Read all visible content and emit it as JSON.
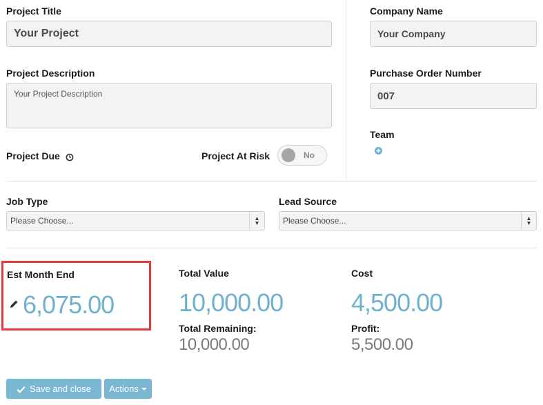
{
  "fields": {
    "project_title_label": "Project Title",
    "project_title_value": "Your Project",
    "company_name_label": "Company Name",
    "company_name_value": "Your Company",
    "project_description_label": "Project Description",
    "project_description_value": "Your Project Description",
    "po_number_label": "Purchase Order Number",
    "po_number_value": "007",
    "project_due_label": "Project Due",
    "project_at_risk_label": "Project At Risk",
    "project_at_risk_toggle": "No",
    "team_label": "Team",
    "job_type_label": "Job Type",
    "job_type_value": "Please Choose...",
    "lead_source_label": "Lead Source",
    "lead_source_value": "Please Choose..."
  },
  "stats": {
    "est_month_end_label": "Est Month End",
    "est_month_end_value": "6,075.00",
    "total_value_label": "Total Value",
    "total_value": "10,000.00",
    "cost_label": "Cost",
    "cost_value": "4,500.00",
    "total_remaining_label": "Total Remaining:",
    "total_remaining_value": "10,000.00",
    "profit_label": "Profit:",
    "profit_value": "5,500.00"
  },
  "actions": {
    "save_label": "Save and close",
    "actions_label": "Actions"
  },
  "colors": {
    "accent": "#6fb1cf",
    "button": "#7ab7d3",
    "highlight": "#e8383b"
  }
}
